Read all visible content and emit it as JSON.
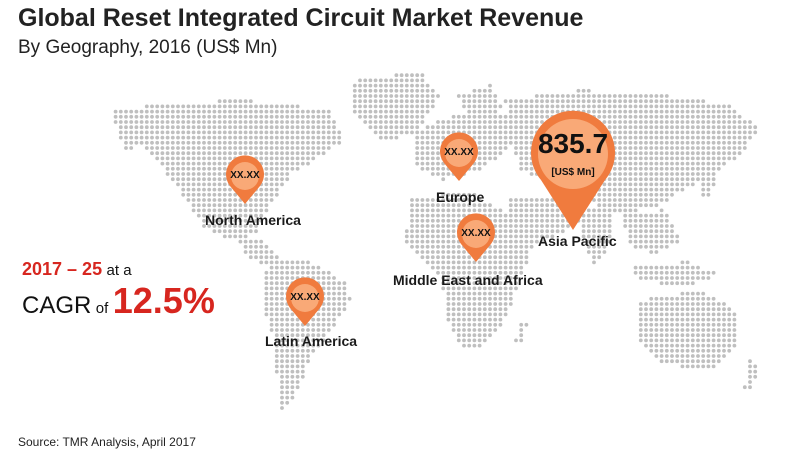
{
  "title": "Global Reset Integrated Circuit Market Revenue",
  "subtitle": "By Geography, 2016 (US$ Mn)",
  "regions": [
    {
      "name": "North America",
      "value": "XX.XX"
    },
    {
      "name": "Europe",
      "value": "XX.XX"
    },
    {
      "name": "Asia Pacific",
      "value": "835.7",
      "unit": "[US$ Mn]"
    },
    {
      "name": "Middle East and Africa",
      "value": "XX.XX"
    },
    {
      "name": "Latin America",
      "value": "XX.XX"
    }
  ],
  "cagr": {
    "period": "2017 – 25",
    "at_a": "at a",
    "cagr_label": "CAGR",
    "of": "of",
    "value": "12.5%"
  },
  "source": "Source: TMR Analysis, April 2017",
  "colors": {
    "pin_outer": "#f07b3e",
    "pin_inner": "#f9a977",
    "accent_red": "#d7261f",
    "map_dot": "#bfbfbf"
  }
}
